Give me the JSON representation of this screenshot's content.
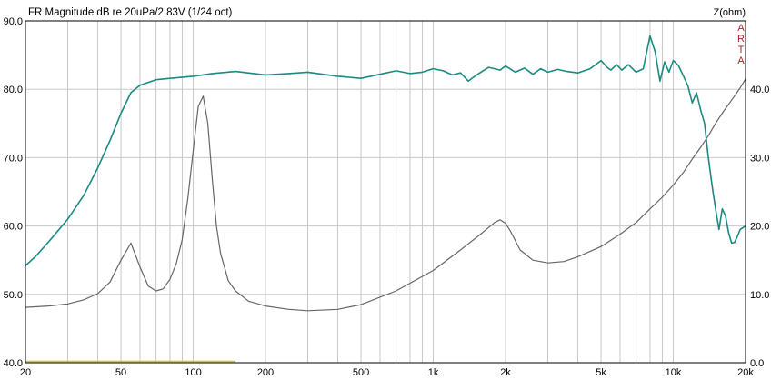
{
  "chart_data": {
    "type": "line",
    "title": "FR Magnitude dB re 20uPa/2.83V (1/24 oct)",
    "right_axis_label": "Z(ohm)",
    "brand": "ARTA",
    "x_scale": "log",
    "xlim": [
      20,
      20000
    ],
    "x_ticks": [
      {
        "value": 20,
        "label": "20"
      },
      {
        "value": 50,
        "label": "50"
      },
      {
        "value": 100,
        "label": "100"
      },
      {
        "value": 200,
        "label": "200"
      },
      {
        "value": 500,
        "label": "500"
      },
      {
        "value": 1000,
        "label": "1k"
      },
      {
        "value": 2000,
        "label": "2k"
      },
      {
        "value": 5000,
        "label": "5k"
      },
      {
        "value": 10000,
        "label": "10k"
      },
      {
        "value": 20000,
        "label": "20k"
      }
    ],
    "ylim": [
      40,
      90
    ],
    "y_ticks": [
      "90.0",
      "80.0",
      "70.0",
      "60.0",
      "50.0",
      "40.0"
    ],
    "y2lim": [
      0,
      50
    ],
    "y2_ticks": [
      "40.0",
      "30.0",
      "20.0",
      "10.0",
      "0.0"
    ],
    "grid": true,
    "colors": {
      "frequency_response": "#1a8a82",
      "impedance": "#666666",
      "baseline": "#cccc00",
      "grid": "#c8c8c8",
      "arta": "#b22222"
    },
    "series": [
      {
        "axis": "left",
        "x": [
          20,
          22,
          25,
          30,
          35,
          40,
          45,
          50,
          55,
          60,
          70,
          80,
          100,
          120,
          150,
          200,
          250,
          300,
          400,
          500,
          600,
          700,
          800,
          900,
          1000,
          1100,
          1200,
          1300,
          1400,
          1500,
          1700,
          1900,
          2000,
          2200,
          2400,
          2600,
          2800,
          3000,
          3300,
          3600,
          4000,
          4500,
          5000,
          5300,
          5500,
          5800,
          6100,
          6500,
          7000,
          7500,
          8000,
          8400,
          8800,
          9200,
          9600,
          10000,
          10500,
          11000,
          11500,
          12000,
          12500,
          13000,
          13500,
          14000,
          14500,
          15000,
          15500,
          16000,
          16500,
          17000,
          17500,
          18000,
          18500,
          19000,
          20000
        ],
        "values": [
          54.2,
          55.5,
          57.7,
          61.0,
          64.5,
          68.5,
          72.5,
          76.5,
          79.5,
          80.6,
          81.4,
          81.6,
          81.9,
          82.3,
          82.6,
          82.1,
          82.3,
          82.5,
          81.9,
          81.6,
          82.2,
          82.7,
          82.3,
          82.5,
          83.0,
          82.7,
          82.1,
          82.4,
          81.2,
          82.0,
          83.2,
          82.8,
          83.4,
          82.5,
          83.1,
          82.2,
          83.0,
          82.5,
          82.9,
          82.6,
          82.4,
          83.0,
          84.2,
          83.2,
          82.8,
          83.6,
          82.8,
          83.6,
          82.5,
          83.0,
          87.8,
          85.5,
          81.2,
          84.0,
          82.5,
          84.2,
          83.5,
          82.0,
          80.5,
          78.0,
          79.5,
          77.0,
          75.0,
          70.0,
          66.0,
          62.5,
          59.5,
          62.5,
          61.5,
          59.0,
          57.5,
          57.6,
          58.5,
          59.5,
          60.0
        ]
      },
      {
        "axis": "right",
        "x": [
          20,
          25,
          30,
          35,
          40,
          45,
          50,
          55,
          60,
          65,
          70,
          75,
          80,
          85,
          90,
          95,
          100,
          105,
          110,
          115,
          120,
          125,
          130,
          140,
          150,
          170,
          200,
          250,
          300,
          400,
          500,
          700,
          1000,
          1300,
          1600,
          1800,
          1900,
          2000,
          2100,
          2300,
          2600,
          3000,
          3500,
          4000,
          5000,
          6000,
          7000,
          8000,
          9000,
          10000,
          11000,
          12000,
          13000,
          14000,
          15000,
          16000,
          17000,
          18000,
          19000,
          20000
        ],
        "values": [
          8.1,
          8.3,
          8.6,
          9.2,
          10.1,
          11.8,
          15.0,
          17.5,
          14.0,
          11.2,
          10.5,
          10.8,
          12.2,
          14.5,
          18.0,
          24.0,
          31.0,
          37.5,
          39.0,
          35.0,
          27.0,
          20.0,
          16.0,
          12.0,
          10.5,
          9.0,
          8.3,
          7.8,
          7.6,
          7.8,
          8.5,
          10.5,
          13.5,
          16.5,
          19.0,
          20.5,
          20.9,
          20.4,
          19.2,
          16.5,
          15.0,
          14.6,
          14.8,
          15.5,
          17.0,
          18.8,
          20.5,
          22.5,
          24.2,
          26.0,
          27.8,
          29.8,
          31.5,
          33.2,
          35.0,
          36.5,
          37.8,
          39.0,
          40.2,
          41.5
        ]
      },
      {
        "axis": "left",
        "x": [
          20,
          150
        ],
        "values": [
          40.2,
          40.2
        ]
      }
    ]
  }
}
